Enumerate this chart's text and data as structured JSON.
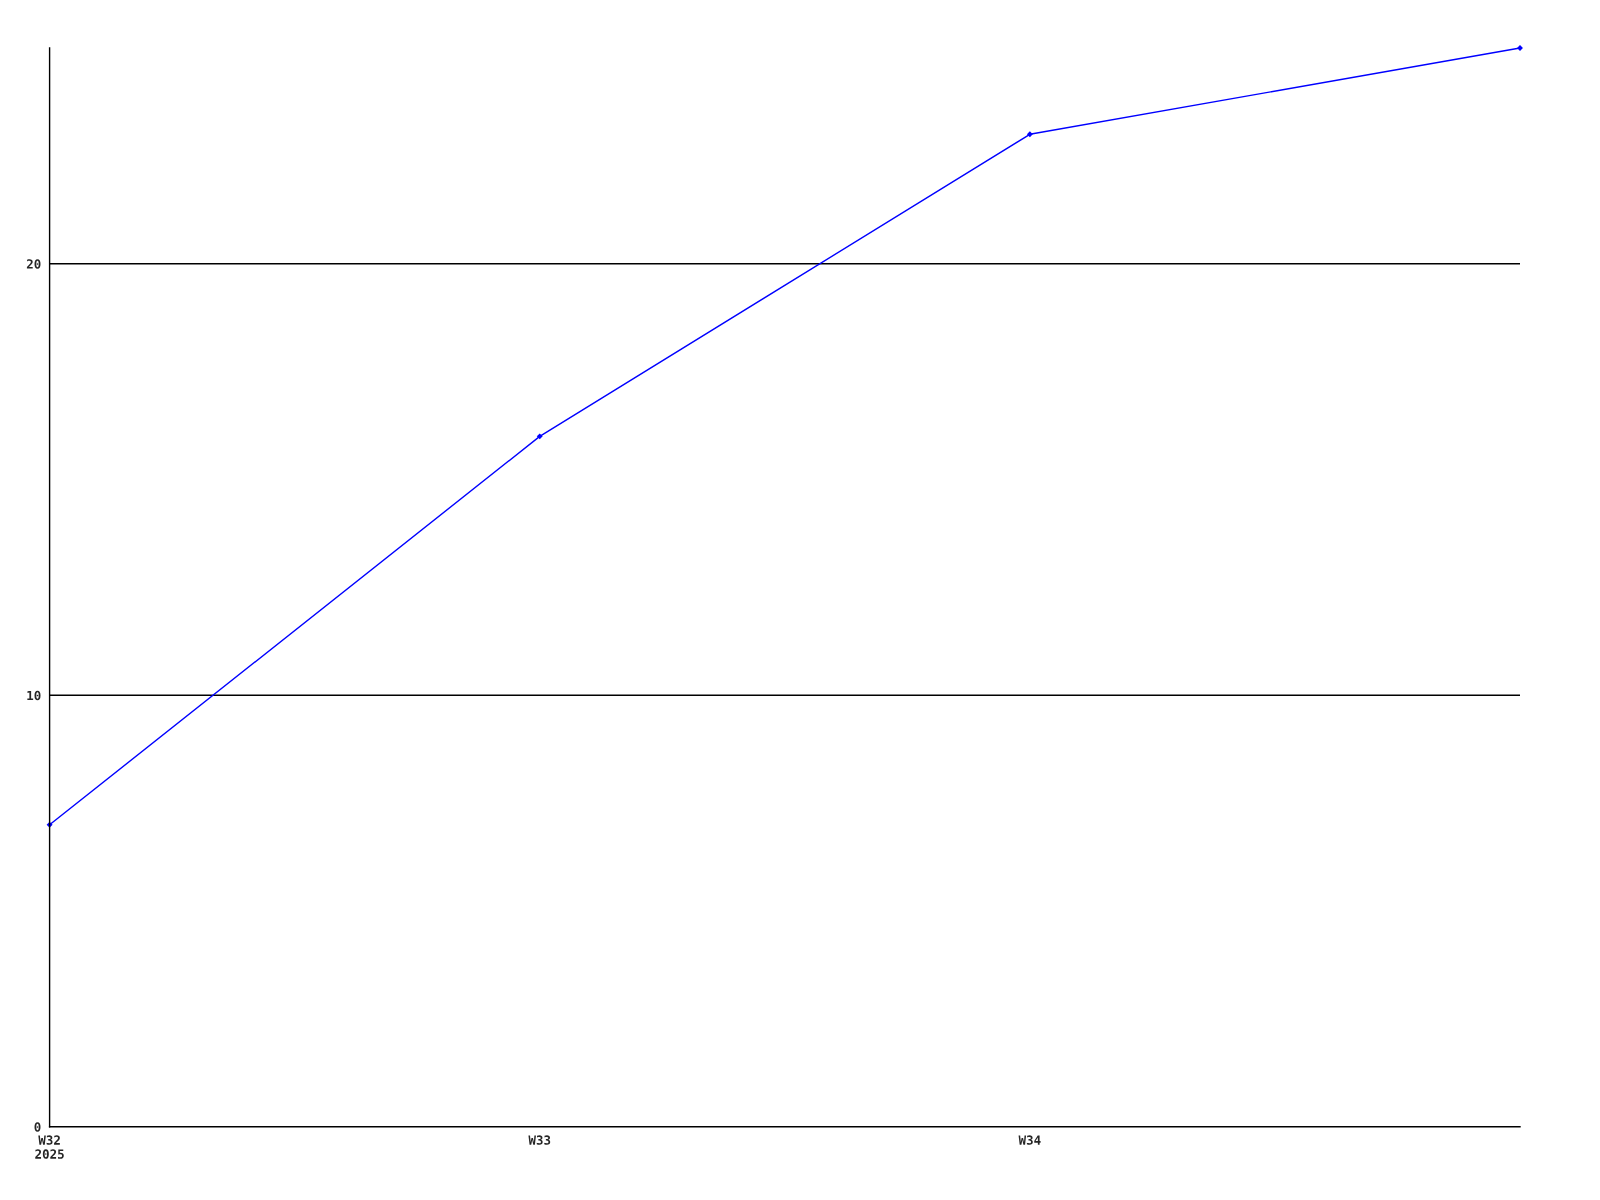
{
  "chart_data": {
    "type": "line",
    "categories": [
      "W32\n2025",
      "W33",
      "W34",
      null
    ],
    "series": [
      {
        "color": "#0000ff",
        "values": [
          7.0,
          16.0,
          23.0,
          25.0
        ]
      }
    ],
    "ylim": [
      0,
      25
    ],
    "yticks": [
      0,
      10,
      20
    ],
    "grid": "y",
    "marker": "diamond",
    "line_style": "solid"
  }
}
